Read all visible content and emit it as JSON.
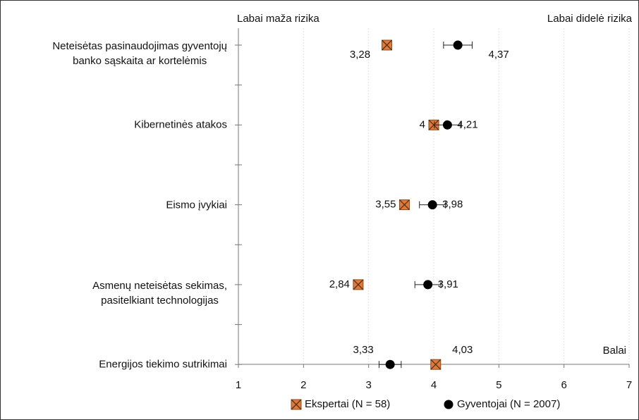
{
  "chart_data": {
    "type": "dot",
    "top_left_label": "Labai maža rizika",
    "top_right_label": "Labai didelė rizika",
    "x_label": "Balai",
    "categories": [
      "Neteisėtas pasinaudojimas gyventojų\nbanko sąskaita ar kortelėmis",
      "Kibernetinės atakos",
      "Eismo įvykiai",
      "Asmenų neteisėtas sekimas,\npasitelkiant technologijas",
      "Energijos tiekimo sutrikimai"
    ],
    "series": [
      {
        "name": "Ekspertai (N = 58)",
        "color": "#dd7a3c",
        "marker": "x-square",
        "values": [
          3.28,
          4,
          3.55,
          2.84,
          4.03
        ],
        "value_labels": [
          "3,28",
          "4",
          "3,55",
          "2,84",
          "4,03"
        ]
      },
      {
        "name": "Gyventojai (N = 2007)",
        "color": "#000000",
        "marker": "circle",
        "values": [
          4.37,
          4.21,
          3.98,
          3.91,
          3.33
        ],
        "errors": [
          0.22,
          0.2,
          0.2,
          0.2,
          0.17
        ],
        "value_labels": [
          "4,37",
          "4,21",
          "3,98",
          "3,91",
          "3,33"
        ]
      }
    ],
    "xlim": [
      1,
      7
    ],
    "xticks": [
      1,
      2,
      3,
      4,
      5,
      6,
      7
    ],
    "grid": true
  }
}
